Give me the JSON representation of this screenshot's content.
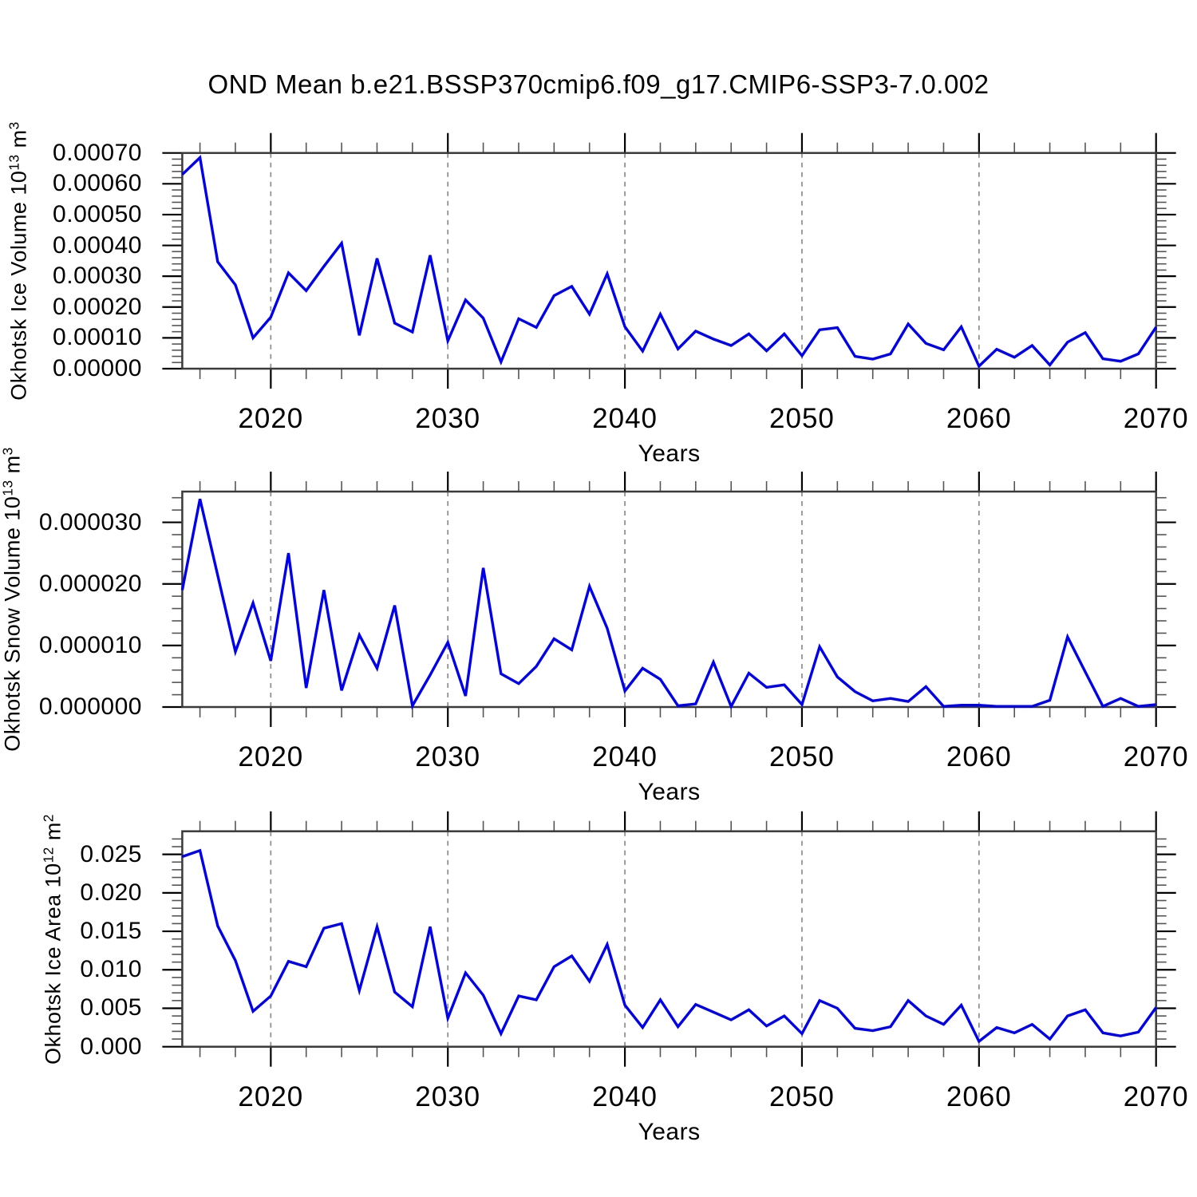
{
  "title": "OND Mean b.e21.BSSP370cmip6.f09_g17.CMIP6-SSP3-7.0.002",
  "colors": {
    "line": "#0000EE",
    "grid_dashed": "#8C8C8C",
    "axis": "#3A3A3A",
    "tick_major": "#000000",
    "tick_minor": "#555555",
    "background": "#FFFFFF",
    "text": "#000000"
  },
  "chart_data": {
    "type": "line",
    "x_label": "Years",
    "x_ticks": [
      2020,
      2030,
      2040,
      2050,
      2060,
      2070
    ],
    "x_minor_step": 2,
    "grid_decades": [
      2020,
      2030,
      2040,
      2050,
      2060
    ],
    "x_range": [
      2015,
      2070
    ],
    "years": [
      2015,
      2016,
      2017,
      2018,
      2019,
      2020,
      2021,
      2022,
      2023,
      2024,
      2025,
      2026,
      2027,
      2028,
      2029,
      2030,
      2031,
      2032,
      2033,
      2034,
      2035,
      2036,
      2037,
      2038,
      2039,
      2040,
      2041,
      2042,
      2043,
      2044,
      2045,
      2046,
      2047,
      2048,
      2049,
      2050,
      2051,
      2052,
      2053,
      2054,
      2055,
      2056,
      2057,
      2058,
      2059,
      2060,
      2061,
      2062,
      2063,
      2064,
      2065,
      2066,
      2067,
      2068,
      2069,
      2070
    ],
    "panels": [
      {
        "ylabel": "Okhotsk Ice Volume 10^13 m^3",
        "ylabel_segments": [
          [
            "Okhotsk Ice Volume 10",
            0
          ],
          [
            "13",
            1
          ],
          [
            " m",
            0
          ],
          [
            "3",
            1
          ]
        ],
        "ymax": 0.0007,
        "ytick_step": 0.0001,
        "yminor_step": 2e-05,
        "ytick_labels": [
          "0.00000",
          "0.00010",
          "0.00020",
          "0.00030",
          "0.00040",
          "0.00050",
          "0.00060",
          "0.00070"
        ],
        "values": [
          0.00063,
          0.000685,
          0.000347,
          0.000272,
          0.0001,
          0.000167,
          0.000311,
          0.000253,
          0.000332,
          0.000407,
          0.000108,
          0.000358,
          0.000148,
          0.000119,
          0.000368,
          9e-05,
          0.000223,
          0.000164,
          2.2e-05,
          0.000162,
          0.000134,
          0.000237,
          0.000267,
          0.000177,
          0.000308,
          0.000136,
          5.7e-05,
          0.000177,
          6.4e-05,
          0.000122,
          9.6e-05,
          7.5e-05,
          0.000113,
          5.8e-05,
          0.000113,
          4.2e-05,
          0.000126,
          0.000133,
          4e-05,
          3.1e-05,
          4.8e-05,
          0.000145,
          8.2e-05,
          6.1e-05,
          0.000136,
          8e-06,
          6.3e-05,
          3.7e-05,
          7.5e-05,
          1.2e-05,
          8.6e-05,
          0.000117,
          3.2e-05,
          2.4e-05,
          4.8e-05,
          0.000135
        ]
      },
      {
        "ylabel": "Okhotsk Snow Volume 10^13 m^3",
        "ylabel_segments": [
          [
            "Okhotsk Snow Volume 10",
            0
          ],
          [
            "13",
            1
          ],
          [
            " m",
            0
          ],
          [
            "3",
            1
          ]
        ],
        "ymax": 3.5e-05,
        "ytick_step": 1e-05,
        "yminor_step": 2e-06,
        "ytick_labels": [
          "0.000000",
          "0.000010",
          "0.000020",
          "0.000030"
        ],
        "values": [
          1.9e-05,
          3.38e-05,
          2.14e-05,
          9e-06,
          1.69e-05,
          7.5e-06,
          2.5e-05,
          3.1e-06,
          1.9e-05,
          2.7e-06,
          1.17e-05,
          6.3e-06,
          1.65e-05,
          2e-07,
          5.2e-06,
          1.05e-05,
          1.8e-06,
          2.26e-05,
          5.4e-06,
          3.8e-06,
          6.6e-06,
          1.11e-05,
          9.3e-06,
          1.96e-05,
          1.28e-05,
          2.6e-06,
          6.3e-06,
          4.5e-06,
          2e-07,
          5e-07,
          7.3e-06,
          1e-07,
          5.5e-06,
          3.2e-06,
          3.6e-06,
          4e-07,
          9.8e-06,
          4.9e-06,
          2.5e-06,
          1e-06,
          1.4e-06,
          9e-07,
          3.3e-06,
          1e-07,
          3e-07,
          3e-07,
          1e-07,
          1e-07,
          1e-07,
          1.1e-06,
          1.14e-05,
          5.7e-06,
          1e-07,
          1.4e-06,
          1e-07,
          4e-07
        ]
      },
      {
        "ylabel": "Okhotsk Ice Area 10^12 m^2",
        "ylabel_segments": [
          [
            "Okhotsk Ice Area 10",
            0
          ],
          [
            "12",
            1
          ],
          [
            " m",
            0
          ],
          [
            "2",
            1
          ]
        ],
        "ymax": 0.028,
        "ytick_step": 0.005,
        "yminor_step": 0.001,
        "ytick_labels": [
          "0.000",
          "0.005",
          "0.010",
          "0.015",
          "0.020",
          "0.025"
        ],
        "values": [
          0.0247,
          0.0255,
          0.0157,
          0.0112,
          0.0046,
          0.0066,
          0.0111,
          0.0104,
          0.0154,
          0.016,
          0.0073,
          0.0156,
          0.0071,
          0.0052,
          0.0156,
          0.0037,
          0.0096,
          0.0067,
          0.0017,
          0.0066,
          0.0061,
          0.0104,
          0.0118,
          0.0085,
          0.0133,
          0.0054,
          0.0025,
          0.0061,
          0.0026,
          0.0055,
          0.0045,
          0.0035,
          0.0048,
          0.0027,
          0.004,
          0.0017,
          0.006,
          0.005,
          0.0024,
          0.0021,
          0.0026,
          0.006,
          0.004,
          0.0029,
          0.0054,
          0.0007,
          0.0025,
          0.0018,
          0.0029,
          0.001,
          0.004,
          0.0048,
          0.0018,
          0.0014,
          0.0019,
          0.0051
        ]
      }
    ]
  }
}
